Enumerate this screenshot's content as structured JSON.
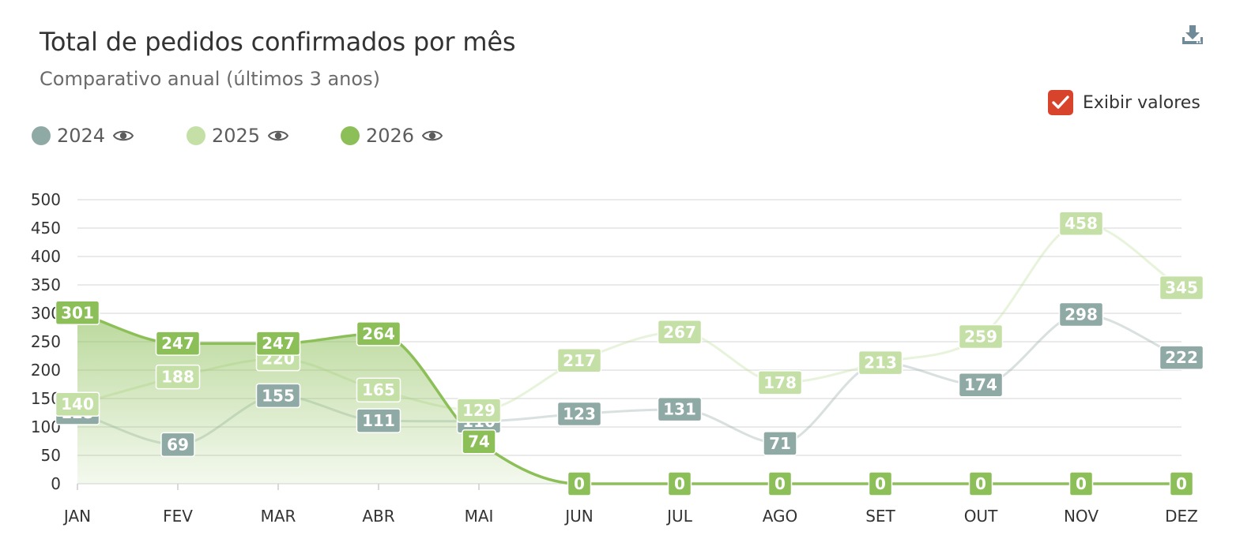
{
  "header": {
    "title": "Total de pedidos confirmados por mês",
    "subtitle": "Comparativo anual (últimos 3 anos)",
    "download_icon": "download-icon"
  },
  "controls": {
    "show_values_label": "Exibir valores",
    "show_values_checked": true,
    "checkbox_color": "#d8432c"
  },
  "legend": {
    "items": [
      {
        "label": "2024",
        "color": "#8fa9a5",
        "icon": "eye-icon"
      },
      {
        "label": "2025",
        "color": "#c5e0a6",
        "icon": "eye-icon"
      },
      {
        "label": "2026",
        "color": "#8cbf58",
        "icon": "eye-icon"
      }
    ]
  },
  "chart_data": {
    "type": "line",
    "title": "Total de pedidos confirmados por mês",
    "subtitle": "Comparativo anual (últimos 3 anos)",
    "categories": [
      "JAN",
      "FEV",
      "MAR",
      "ABR",
      "MAI",
      "JUN",
      "JUL",
      "AGO",
      "SET",
      "OUT",
      "NOV",
      "DEZ"
    ],
    "ylim": [
      0,
      500
    ],
    "yticks": [
      0,
      50,
      100,
      150,
      200,
      250,
      300,
      350,
      400,
      450,
      500
    ],
    "grid": true,
    "legend_position": "top-left",
    "data_labels": true,
    "series": [
      {
        "name": "2024",
        "color": "#8fa9a5",
        "area": false,
        "values": [
          125,
          69,
          155,
          111,
          110,
          123,
          131,
          71,
          213,
          174,
          298,
          222
        ]
      },
      {
        "name": "2025",
        "color": "#c5e0a6",
        "area": false,
        "values": [
          140,
          188,
          220,
          165,
          129,
          217,
          267,
          178,
          213,
          259,
          458,
          345
        ]
      },
      {
        "name": "2026",
        "color": "#8cbf58",
        "area": true,
        "values": [
          301,
          247,
          247,
          264,
          74,
          0,
          0,
          0,
          0,
          0,
          0,
          0
        ]
      }
    ]
  }
}
